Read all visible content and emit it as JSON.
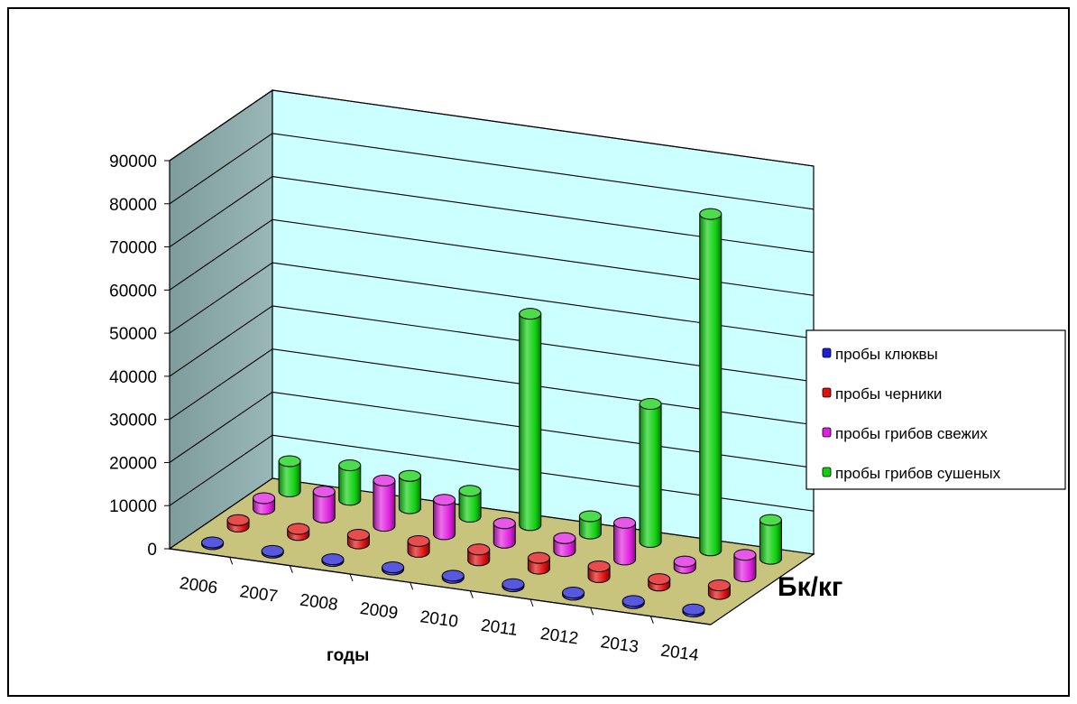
{
  "chart_data": {
    "type": "bar",
    "style": "3d-cylinder",
    "categories": [
      "2006",
      "2007",
      "2008",
      "2009",
      "2010",
      "2011",
      "2012",
      "2013",
      "2014"
    ],
    "series": [
      {
        "name": "пробы клюквы",
        "color": "#1f1fd6",
        "values": [
          400,
          400,
          400,
          500,
          500,
          500,
          500,
          500,
          500
        ]
      },
      {
        "name": "пробы черники",
        "color": "#e01010",
        "values": [
          1500,
          1400,
          2000,
          2500,
          2500,
          2500,
          2500,
          1500,
          2000
        ]
      },
      {
        "name": "пробы грибов свежих",
        "color": "#e020e0",
        "values": [
          2500,
          6000,
          10500,
          8000,
          4500,
          3000,
          8500,
          1500,
          5000
        ]
      },
      {
        "name": "пробы грибов сушеных",
        "color": "#10d010",
        "values": [
          7000,
          8000,
          7500,
          6000,
          49000,
          4000,
          32000,
          78000,
          9000
        ]
      }
    ],
    "yticks": [
      "0",
      "10000",
      "20000",
      "30000",
      "40000",
      "50000",
      "60000",
      "70000",
      "80000",
      "90000"
    ],
    "ylim": [
      0,
      90000
    ],
    "xlabel": "годы",
    "unit_label": "Бк/кг",
    "legend_position": "right",
    "grid": true
  }
}
